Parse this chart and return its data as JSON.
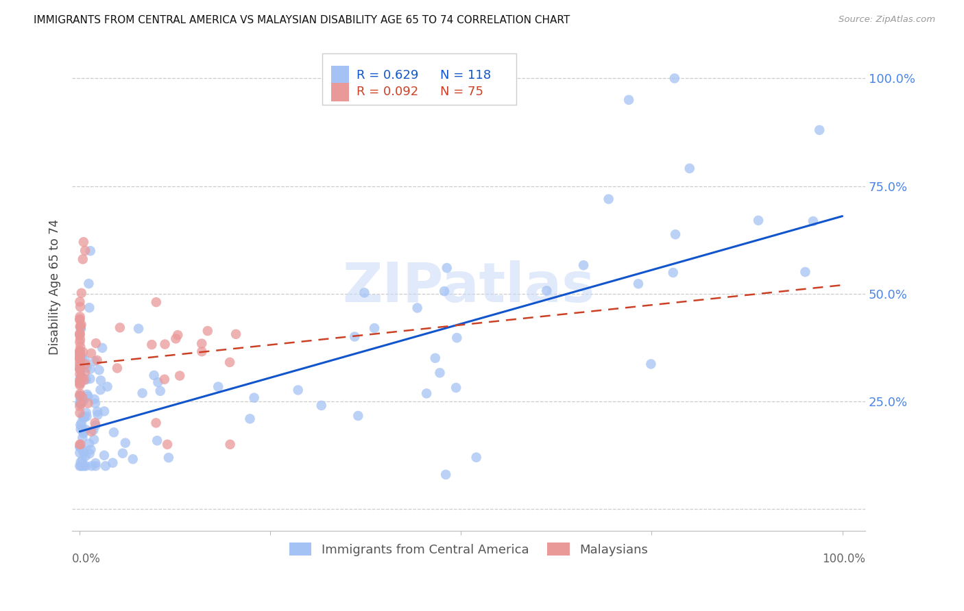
{
  "title": "IMMIGRANTS FROM CENTRAL AMERICA VS MALAYSIAN DISABILITY AGE 65 TO 74 CORRELATION CHART",
  "source": "Source: ZipAtlas.com",
  "ylabel": "Disability Age 65 to 74",
  "blue_color": "#a4c2f4",
  "pink_color": "#ea9999",
  "blue_line_color": "#1155cc",
  "pink_line_color": "#cc4125",
  "watermark": "ZIPatlas",
  "legend_blue_r": "R = 0.629",
  "legend_blue_n": "N = 118",
  "legend_pink_r": "R = 0.092",
  "legend_pink_n": "N = 75",
  "blue_line_x0": 0.0,
  "blue_line_x1": 1.0,
  "blue_line_y0": 0.18,
  "blue_line_y1": 0.68,
  "pink_line_x0": 0.0,
  "pink_line_x1": 1.0,
  "pink_line_y0": 0.335,
  "pink_line_y1": 0.52,
  "xlim_min": -0.01,
  "xlim_max": 1.03,
  "ylim_min": -0.05,
  "ylim_max": 1.08,
  "yticks": [
    0.0,
    0.25,
    0.5,
    0.75,
    1.0
  ],
  "ytick_labels": [
    "",
    "25.0%",
    "50.0%",
    "75.0%",
    "100.0%"
  ],
  "grid_color": "#cccccc",
  "bottom_legend_labels": [
    "Immigrants from Central America",
    "Malaysians"
  ]
}
